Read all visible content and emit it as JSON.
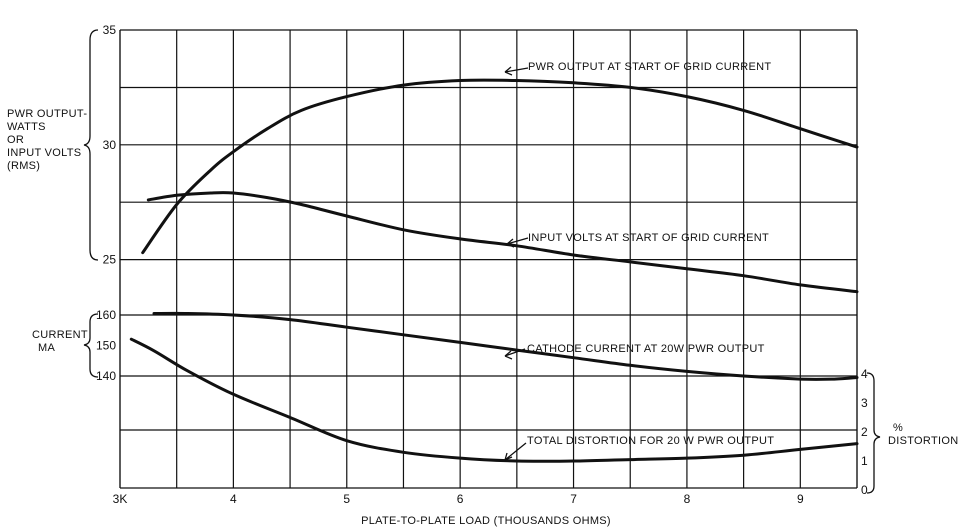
{
  "chart_data": {
    "type": "line",
    "x_axis": {
      "label": "PLATE-TO-PLATE LOAD (THOUSANDS OHMS)",
      "range": [
        3,
        9.5
      ],
      "ticks": [
        3,
        4,
        5,
        6,
        7,
        8,
        9
      ],
      "tick_labels": [
        "3K",
        "4",
        "5",
        "6",
        "7",
        "8",
        "9"
      ]
    },
    "left_axes": [
      {
        "label": [
          "PWR OUTPUT-",
          "WATTS",
          "OR",
          "INPUT VOLTS",
          "(RMS)"
        ],
        "ticks": [
          25,
          30,
          35
        ],
        "tick_labels": [
          "25",
          "30",
          "35"
        ],
        "range": [
          25,
          35
        ]
      },
      {
        "label": [
          "CURRENT",
          "MA"
        ],
        "ticks": [
          140,
          150,
          160
        ],
        "tick_labels": [
          "140",
          "150",
          "160"
        ],
        "range": [
          140,
          160
        ]
      }
    ],
    "right_axis": {
      "label": [
        "%",
        "DISTORTION"
      ],
      "ticks": [
        0,
        1,
        2,
        3,
        4
      ],
      "tick_labels": [
        "0",
        "1",
        "2",
        "3",
        "4"
      ],
      "range": [
        0,
        4
      ]
    },
    "grid": true,
    "series": [
      {
        "name": "PWR OUTPUT AT START OF GRID CURRENT",
        "axis": "watts_volts",
        "x": [
          3.2,
          3.5,
          3.8,
          4.0,
          4.3,
          4.6,
          5.0,
          5.5,
          6.0,
          6.5,
          7.0,
          7.5,
          8.0,
          8.5,
          9.0,
          9.5
        ],
        "y": [
          25.3,
          27.4,
          28.9,
          29.7,
          30.7,
          31.5,
          32.1,
          32.6,
          32.8,
          32.8,
          32.7,
          32.5,
          32.1,
          31.5,
          30.7,
          29.9
        ]
      },
      {
        "name": "INPUT VOLTS AT START OF GRID CURRENT",
        "axis": "watts_volts",
        "x": [
          3.25,
          3.5,
          3.8,
          4.0,
          4.3,
          4.6,
          5.0,
          5.5,
          6.0,
          6.5,
          7.0,
          7.5,
          8.0,
          8.5,
          9.0,
          9.5
        ],
        "y": [
          27.6,
          27.8,
          27.9,
          27.9,
          27.7,
          27.4,
          26.9,
          26.3,
          25.9,
          25.6,
          25.2,
          24.9,
          24.6,
          24.3,
          23.9,
          23.6
        ]
      },
      {
        "name": "CATHODE CURRENT AT 20W PWR OUTPUT",
        "axis": "current_ma",
        "x": [
          3.3,
          3.6,
          4.0,
          4.5,
          5.0,
          5.5,
          6.0,
          6.5,
          7.0,
          7.5,
          8.0,
          8.5,
          9.0,
          9.3,
          9.5
        ],
        "y": [
          160.5,
          160.5,
          160,
          158.5,
          156,
          153.5,
          151,
          148.5,
          146,
          143.5,
          141.5,
          140,
          139,
          139,
          139.5
        ]
      },
      {
        "name": "TOTAL DISTORTION FOR 20 W PWR OUTPUT",
        "axis": "distortion_pct",
        "x": [
          3.1,
          3.3,
          3.6,
          4.0,
          4.5,
          5.0,
          5.5,
          6.0,
          6.5,
          7.0,
          7.5,
          8.0,
          8.5,
          9.0,
          9.5
        ],
        "y": [
          5.2,
          4.8,
          4.1,
          3.3,
          2.5,
          1.7,
          1.3,
          1.1,
          1.0,
          1.0,
          1.05,
          1.1,
          1.2,
          1.4,
          1.6
        ]
      }
    ],
    "annotations": [
      "PWR OUTPUT AT START OF GRID CURRENT",
      "INPUT VOLTS AT START OF GRID CURRENT",
      "CATHODE CURRENT AT 20W PWR OUTPUT",
      "TOTAL DISTORTION FOR 20 W PWR OUTPUT"
    ]
  }
}
